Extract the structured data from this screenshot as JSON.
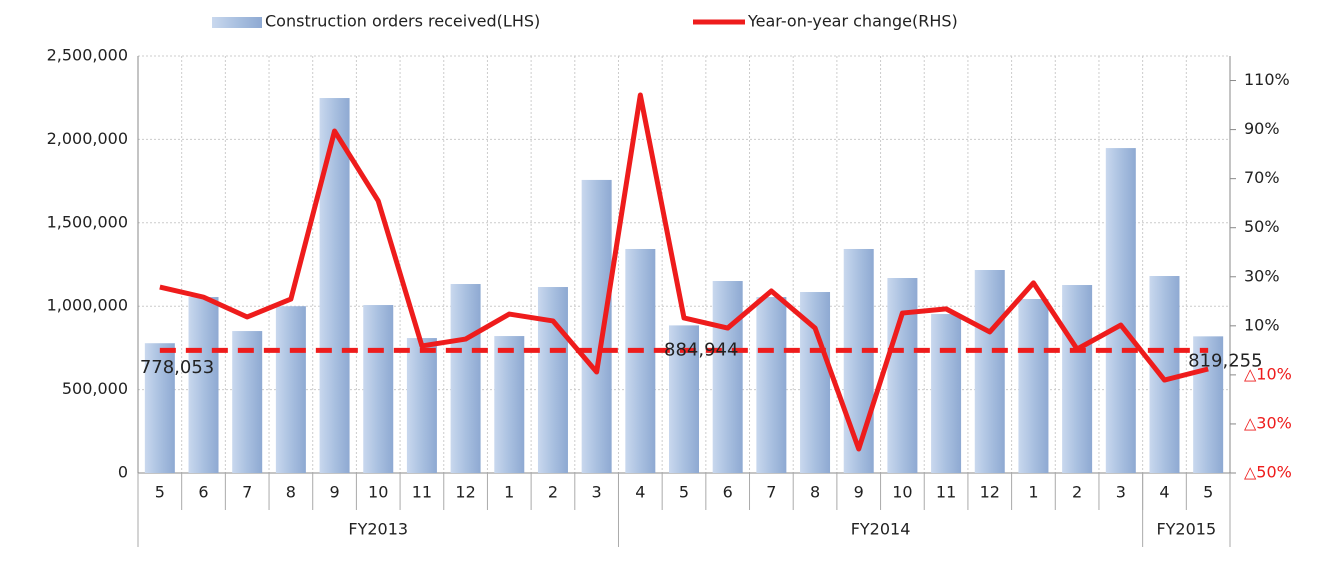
{
  "chart_data": {
    "type": "bar_line",
    "categories": [
      "5",
      "6",
      "7",
      "8",
      "9",
      "10",
      "11",
      "12",
      "1",
      "2",
      "3",
      "4",
      "5",
      "6",
      "7",
      "8",
      "9",
      "10",
      "11",
      "12",
      "1",
      "2",
      "3",
      "4",
      "5"
    ],
    "groups": [
      {
        "label": "FY2013",
        "start": 0,
        "end": 10
      },
      {
        "label": "FY2014",
        "start": 11,
        "end": 22
      },
      {
        "label": "FY2015",
        "start": 23,
        "end": 24
      }
    ],
    "series": [
      {
        "name": "Construction orders received(LHS)",
        "type": "bar",
        "color": "#a9c0e0",
        "values": [
          778053,
          1055000,
          851000,
          1000000,
          2248000,
          1007000,
          809000,
          1133000,
          821000,
          1115000,
          1757000,
          1343000,
          884944,
          1151000,
          1055000,
          1085000,
          1343000,
          1169000,
          953000,
          1217000,
          1043000,
          1127000,
          1948000,
          1181000,
          819255
        ],
        "value_labels": [
          "778,053",
          null,
          null,
          null,
          null,
          null,
          null,
          null,
          null,
          null,
          null,
          null,
          "884,944",
          null,
          null,
          null,
          null,
          null,
          null,
          null,
          null,
          null,
          null,
          null,
          "819,255"
        ]
      },
      {
        "name": "Year-on-year change(RHS)",
        "type": "line",
        "axis": "y2",
        "color": "#ee1c1c",
        "values": [
          25.8,
          21.7,
          13.6,
          20.9,
          89.4,
          60.9,
          1.8,
          4.6,
          14.8,
          12.0,
          -8.8,
          104.1,
          13.2,
          9.1,
          24.2,
          9.1,
          -40.2,
          15.2,
          16.9,
          7.5,
          27.5,
          0.5,
          10.3,
          -12.1,
          -7.6
        ]
      }
    ],
    "y2_reference_line": 0,
    "ylim": [
      0,
      2500000
    ],
    "yticks": [
      0,
      {
        "value": 500000,
        "label": "500,000"
      },
      {
        "value": 1000000,
        "label": "1,000,000"
      },
      {
        "value": 1500000,
        "label": "1,500,000"
      },
      {
        "value": 2000000,
        "label": "2,000,000"
      },
      {
        "value": 2500000,
        "label": "2,500,000"
      }
    ],
    "y2lim": [
      -50,
      120
    ],
    "y2ticks": [
      {
        "value": -50,
        "label": "△50%"
      },
      {
        "value": -30,
        "label": "△30%"
      },
      {
        "value": -10,
        "label": "△10%"
      },
      {
        "value": 10,
        "label": "10%"
      },
      {
        "value": 30,
        "label": "30%"
      },
      {
        "value": 50,
        "label": "50%"
      },
      {
        "value": 70,
        "label": "70%"
      },
      {
        "value": 90,
        "label": "90%"
      },
      {
        "value": 110,
        "label": "110%"
      }
    ],
    "negative_tick_color": "#ee1c1c",
    "grid": true
  }
}
